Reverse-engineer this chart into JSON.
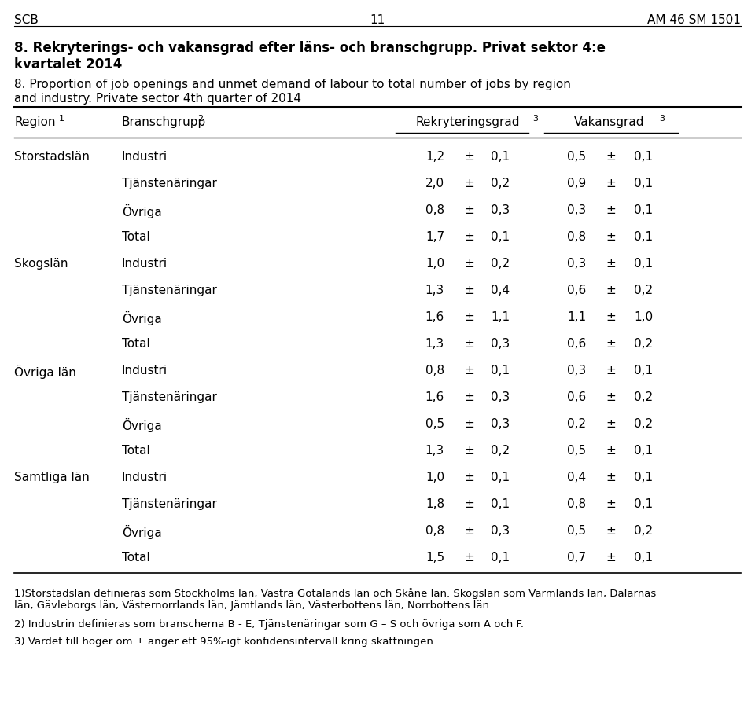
{
  "header_left": "SCB",
  "header_center": "11",
  "header_right": "AM 46 SM 1501",
  "title_bold_line1": "8. Rekryterings- och vakansgrad efter läns- och branschgrupp. Privat sektor 4:e",
  "title_bold_line2": "kvartalet 2014",
  "title_normal_line1": "8. Proportion of job openings and unmet demand of labour to total number of jobs by region",
  "title_normal_line2": "and industry. Private sector 4th quarter of 2014",
  "rows": [
    {
      "region": "Storstadslän",
      "bransch": "Industri",
      "rek_val": "1,2",
      "rek_err": "0,1",
      "vak_val": "0,5",
      "vak_err": "0,1"
    },
    {
      "region": "",
      "bransch": "Tjänstenäringar",
      "rek_val": "2,0",
      "rek_err": "0,2",
      "vak_val": "0,9",
      "vak_err": "0,1"
    },
    {
      "region": "",
      "bransch": "Övriga",
      "rek_val": "0,8",
      "rek_err": "0,3",
      "vak_val": "0,3",
      "vak_err": "0,1"
    },
    {
      "region": "",
      "bransch": "Total",
      "rek_val": "1,7",
      "rek_err": "0,1",
      "vak_val": "0,8",
      "vak_err": "0,1"
    },
    {
      "region": "Skogslän",
      "bransch": "Industri",
      "rek_val": "1,0",
      "rek_err": "0,2",
      "vak_val": "0,3",
      "vak_err": "0,1"
    },
    {
      "region": "",
      "bransch": "Tjänstenäringar",
      "rek_val": "1,3",
      "rek_err": "0,4",
      "vak_val": "0,6",
      "vak_err": "0,2"
    },
    {
      "region": "",
      "bransch": "Övriga",
      "rek_val": "1,6",
      "rek_err": "1,1",
      "vak_val": "1,1",
      "vak_err": "1,0"
    },
    {
      "region": "",
      "bransch": "Total",
      "rek_val": "1,3",
      "rek_err": "0,3",
      "vak_val": "0,6",
      "vak_err": "0,2"
    },
    {
      "region": "Övriga län",
      "bransch": "Industri",
      "rek_val": "0,8",
      "rek_err": "0,1",
      "vak_val": "0,3",
      "vak_err": "0,1"
    },
    {
      "region": "",
      "bransch": "Tjänstenäringar",
      "rek_val": "1,6",
      "rek_err": "0,3",
      "vak_val": "0,6",
      "vak_err": "0,2"
    },
    {
      "region": "",
      "bransch": "Övriga",
      "rek_val": "0,5",
      "rek_err": "0,3",
      "vak_val": "0,2",
      "vak_err": "0,2"
    },
    {
      "region": "",
      "bransch": "Total",
      "rek_val": "1,3",
      "rek_err": "0,2",
      "vak_val": "0,5",
      "vak_err": "0,1"
    },
    {
      "region": "Samtliga län",
      "bransch": "Industri",
      "rek_val": "1,0",
      "rek_err": "0,1",
      "vak_val": "0,4",
      "vak_err": "0,1"
    },
    {
      "region": "",
      "bransch": "Tjänstenäringar",
      "rek_val": "1,8",
      "rek_err": "0,1",
      "vak_val": "0,8",
      "vak_err": "0,1"
    },
    {
      "region": "",
      "bransch": "Övriga",
      "rek_val": "0,8",
      "rek_err": "0,3",
      "vak_val": "0,5",
      "vak_err": "0,2"
    },
    {
      "region": "",
      "bransch": "Total",
      "rek_val": "1,5",
      "rek_err": "0,1",
      "vak_val": "0,7",
      "vak_err": "0,1"
    }
  ],
  "footnote1a": "1)Storstadslän definieras som Stockholms län, Västra Götalands län och Skåne län. Skogslän som Värmlands län, Dalarnas",
  "footnote1b": "län, Gävleborgs län, Västernorrlands län, Jämtlands län, Västerbottens län, Norrbottens län.",
  "footnote2": "2) Industrin definieras som branscherna B - E, Tjänstenäringar som G – S och övriga som A och F.",
  "footnote3": "3) Värdet till höger om ± anger ett 95%-igt konfidensintervall kring skattningen.",
  "bg_color": "#ffffff",
  "text_color": "#000000"
}
